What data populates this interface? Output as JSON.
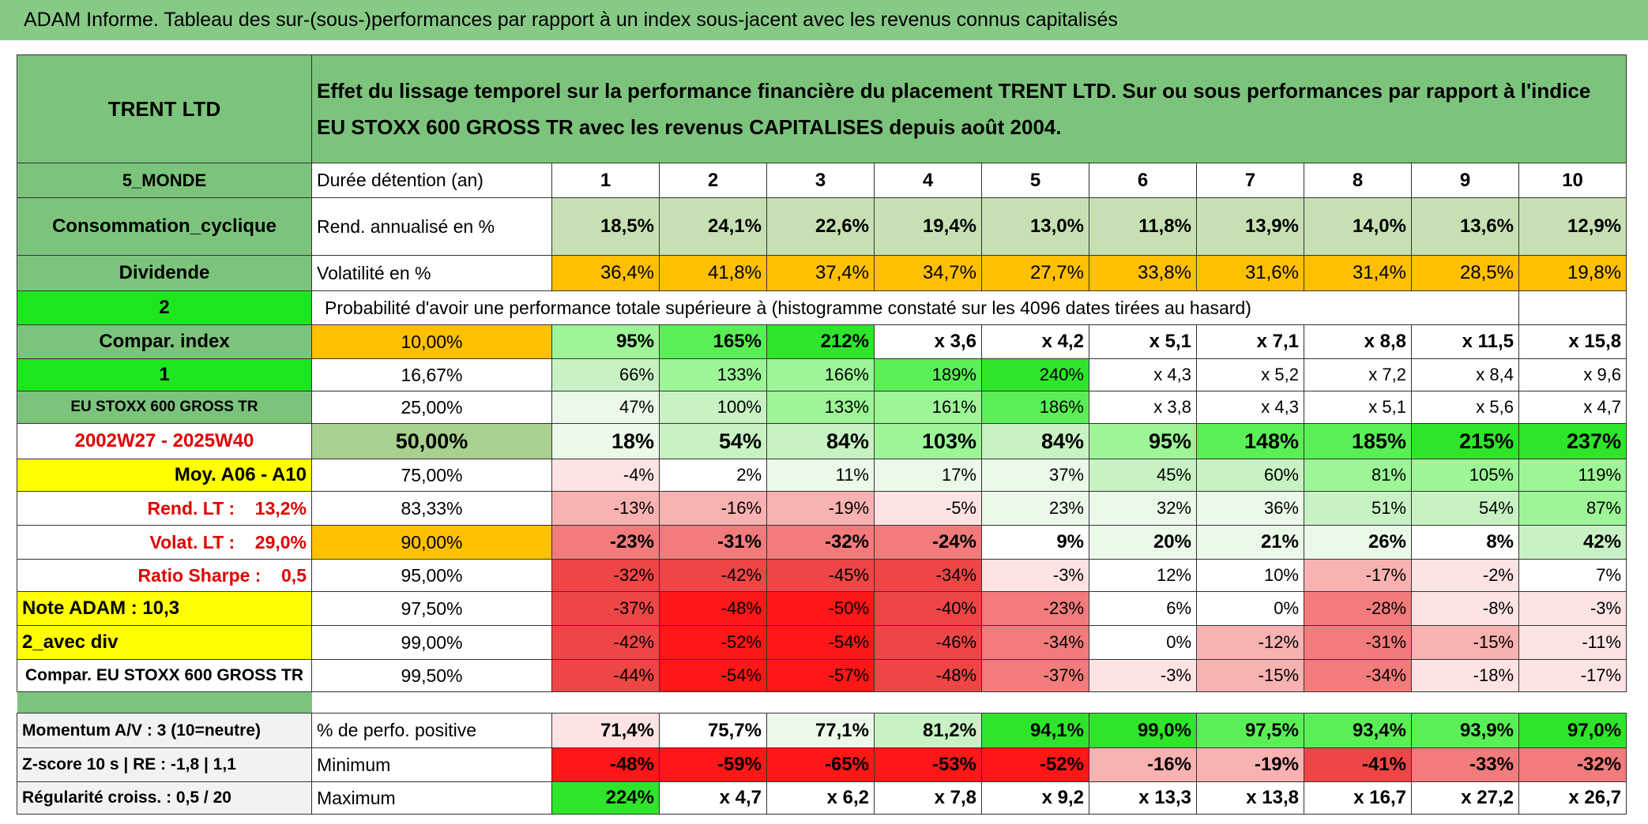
{
  "header": {
    "title": "ADAM Informe. Tableau des sur-(sous-)performances par rapport à un index sous-jacent avec les revenus connus capitalisés"
  },
  "table": {
    "rows": [
      [
        "TRENT LTD",
        "Effet du lissage temporel sur la performance financière du placement TRENT LTD. Sur ou sous performances par rapport à l'indice EU STOXX 600 GROSS TR avec les revenus CAPITALISES depuis août 2004."
      ],
      [
        "5_MONDE",
        "Durée détention (an)",
        "1",
        "2",
        "3",
        "4",
        "5",
        "6",
        "7",
        "8",
        "9",
        "10"
      ],
      [
        "Consommation_cyclique",
        "Rend. annualisé en %",
        "18,5%",
        "24,1%",
        "22,6%",
        "19,4%",
        "13,0%",
        "11,8%",
        "13,9%",
        "14,0%",
        "13,6%",
        "12,9%"
      ],
      [
        "Dividende",
        "Volatilité en %",
        "36,4%",
        "41,8%",
        "37,4%",
        "34,7%",
        "27,7%",
        "33,8%",
        "31,6%",
        "31,4%",
        "28,5%",
        "19,8%"
      ],
      [
        "2",
        "Probabilité d'avoir une performance totale supérieure à (histogramme constaté sur les 4096 dates tirées au hasard)"
      ],
      [
        "Compar. index",
        "10,00%",
        "95%",
        "165%",
        "212%",
        "x 3,6",
        "x 4,2",
        "x 5,1",
        "x 7,1",
        "x 8,8",
        "x 11,5",
        "x 15,8"
      ],
      [
        "1",
        "16,67%",
        "66%",
        "133%",
        "166%",
        "189%",
        "240%",
        "x 4,3",
        "x 5,2",
        "x 7,2",
        "x 8,4",
        "x 9,6"
      ],
      [
        "EU STOXX 600 GROSS TR",
        "25,00%",
        "47%",
        "100%",
        "133%",
        "161%",
        "186%",
        "x 3,8",
        "x 4,3",
        "x 5,1",
        "x 5,6",
        "x 4,7"
      ],
      [
        "2002W27 - 2025W40",
        "50,00%",
        "18%",
        "54%",
        "84%",
        "103%",
        "84%",
        "95%",
        "148%",
        "185%",
        "215%",
        "237%"
      ],
      [
        "Moy. A06 - A10",
        "75,00%",
        "-4%",
        "2%",
        "11%",
        "17%",
        "37%",
        "45%",
        "60%",
        "81%",
        "105%",
        "119%"
      ],
      [
        "Rend. LT :    13,2%",
        "83,33%",
        "-13%",
        "-16%",
        "-19%",
        "-5%",
        "23%",
        "32%",
        "36%",
        "51%",
        "54%",
        "87%"
      ],
      [
        "Volat. LT :    29,0%",
        "90,00%",
        "-23%",
        "-31%",
        "-32%",
        "-24%",
        "9%",
        "20%",
        "21%",
        "26%",
        "8%",
        "42%"
      ],
      [
        "Ratio Sharpe :    0,5",
        "95,00%",
        "-32%",
        "-42%",
        "-45%",
        "-34%",
        "-3%",
        "12%",
        "10%",
        "-17%",
        "-2%",
        "7%"
      ],
      [
        "Note ADAM : 10,3",
        "97,50%",
        "-37%",
        "-48%",
        "-50%",
        "-40%",
        "-23%",
        "6%",
        "0%",
        "-28%",
        "-8%",
        "-3%"
      ],
      [
        "2_avec div",
        "99,00%",
        "-42%",
        "-52%",
        "-54%",
        "-46%",
        "-34%",
        "0%",
        "-12%",
        "-31%",
        "-15%",
        "-11%"
      ],
      [
        "Compar. EU STOXX 600 GROSS TR",
        "99,50%",
        "-44%",
        "-54%",
        "-57%",
        "-48%",
        "-37%",
        "-3%",
        "-15%",
        "-34%",
        "-18%",
        "-17%"
      ]
    ],
    "summary_rows": [
      [
        "Momentum A/V : 3 (10=neutre)",
        "% de perfo. positive",
        "71,4%",
        "75,7%",
        "77,1%",
        "81,2%",
        "94,1%",
        "99,0%",
        "97,5%",
        "93,4%",
        "93,9%",
        "97,0%"
      ],
      [
        "Z-score 10 s | RE : -1,8 | 1,1",
        "Minimum",
        "-48%",
        "-59%",
        "-65%",
        "-53%",
        "-52%",
        "-16%",
        "-19%",
        "-41%",
        "-33%",
        "-32%"
      ],
      [
        "Régularité croiss. : 0,5 / 20",
        "Maximum",
        "224%",
        "x 4,7",
        "x 6,2",
        "x 7,8",
        "x 9,2",
        "x 13,3",
        "x 13,8",
        "x 16,7",
        "x 27,2",
        "x 26,7"
      ]
    ]
  }
}
